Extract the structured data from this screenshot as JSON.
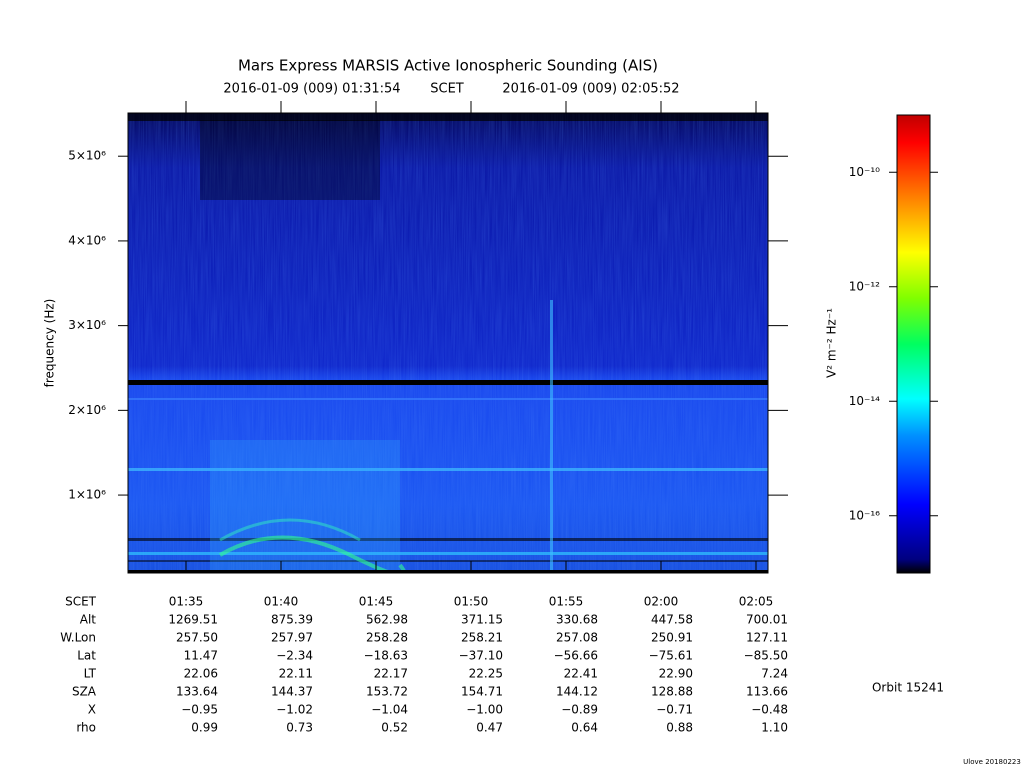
{
  "chart_data": {
    "type": "spectrogram",
    "title": "Mars Express MARSIS Active Ionospheric Sounding (AIS)",
    "subtitle": [
      "2016-01-09 (009) 01:31:54",
      "SCET",
      "2016-01-09 (009) 02:05:52"
    ],
    "y_label": "frequency (Hz)",
    "ylim": [
      80000,
      5510000
    ],
    "yticks": [
      {
        "value": 1000000,
        "label": "1×10⁶"
      },
      {
        "value": 2000000,
        "label": "2×10⁶"
      },
      {
        "value": 3000000,
        "label": "3×10⁶"
      },
      {
        "value": 4000000,
        "label": "4×10⁶"
      },
      {
        "value": 5000000,
        "label": "5×10⁶"
      }
    ],
    "colorbar": {
      "label": "V² m⁻² Hz⁻¹",
      "log_scale": true,
      "clim": [
        1e-17,
        1e-09
      ],
      "ticks": [
        {
          "value": 1e-16,
          "label": "10⁻¹⁶"
        },
        {
          "value": 1e-14,
          "label": "10⁻¹⁴"
        },
        {
          "value": 1e-12,
          "label": "10⁻¹²"
        },
        {
          "value": 1e-10,
          "label": "10⁻¹⁰"
        }
      ]
    },
    "table": {
      "rows": [
        {
          "label": "SCET",
          "cells": [
            "01:35",
            "01:40",
            "01:45",
            "01:50",
            "01:55",
            "02:00",
            "02:05"
          ]
        },
        {
          "label": "Alt",
          "cells": [
            "1269.51",
            "875.39",
            "562.98",
            "371.15",
            "330.68",
            "447.58",
            "700.01"
          ]
        },
        {
          "label": "W.Lon",
          "cells": [
            "257.50",
            "257.97",
            "258.28",
            "258.21",
            "257.08",
            "250.91",
            "127.11"
          ]
        },
        {
          "label": "Lat",
          "cells": [
            "11.47",
            "−2.34",
            "−18.63",
            "−37.10",
            "−56.66",
            "−75.61",
            "−85.50"
          ]
        },
        {
          "label": "LT",
          "cells": [
            "22.06",
            "22.11",
            "22.17",
            "22.25",
            "22.41",
            "22.90",
            "7.24"
          ]
        },
        {
          "label": "SZA",
          "cells": [
            "133.64",
            "144.37",
            "153.72",
            "154.71",
            "144.12",
            "128.88",
            "113.66"
          ]
        },
        {
          "label": "X",
          "cells": [
            "−0.95",
            "−1.02",
            "−1.04",
            "−1.00",
            "−0.89",
            "−0.71",
            "−0.48"
          ]
        },
        {
          "label": "rho",
          "cells": [
            "0.99",
            "0.73",
            "0.52",
            "0.47",
            "0.64",
            "0.88",
            "1.10"
          ]
        }
      ]
    },
    "orbit": "Orbit 15241",
    "footer": "Ulove 20180223"
  }
}
